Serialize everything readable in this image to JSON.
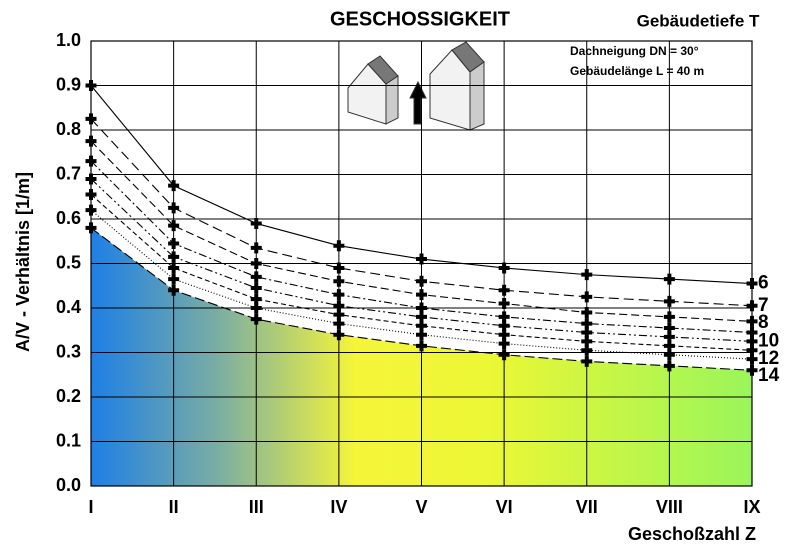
{
  "chart_data": {
    "type": "line",
    "title": "GESCHOSSIGKEIT",
    "legend_title": "Gebäudetiefe  T",
    "annotations": [
      "Dachneigung   DN = 30°",
      "Gebäudelänge L = 40 m"
    ],
    "y_label": "A/V - Verhältnis [1/m]",
    "x_label": "Geschoßzahl Z",
    "categories": [
      "I",
      "II",
      "III",
      "IV",
      "V",
      "VI",
      "VII",
      "VIII",
      "IX"
    ],
    "ylim": [
      0,
      1
    ],
    "yticks": [
      {
        "value": 0,
        "label": "0.0"
      },
      0.1,
      0.2,
      0.3,
      0.4,
      0.5,
      0.6,
      0.7,
      0.8,
      0.9,
      {
        "value": 1,
        "label": "1.0"
      }
    ],
    "grid": true,
    "series": [
      {
        "name": "6",
        "color": "#000000",
        "dash": "",
        "values": [
          0.9,
          0.675,
          0.59,
          0.54,
          0.51,
          0.49,
          0.475,
          0.465,
          0.455
        ]
      },
      {
        "name": "7",
        "color": "#000000",
        "dash": "10 5",
        "values": [
          0.825,
          0.625,
          0.535,
          0.49,
          0.46,
          0.44,
          0.425,
          0.415,
          0.405
        ]
      },
      {
        "name": "8",
        "color": "#000000",
        "dash": "8 4",
        "values": [
          0.775,
          0.585,
          0.5,
          0.46,
          0.43,
          0.41,
          0.39,
          0.38,
          0.37
        ]
      },
      {
        "name": null,
        "color": "#000000",
        "dash": "8 3 2 3",
        "values": [
          0.73,
          0.545,
          0.47,
          0.43,
          0.4,
          0.38,
          0.365,
          0.355,
          0.345
        ]
      },
      {
        "name": "10",
        "color": "#000000",
        "dash": "8 3 2 3 2 3",
        "values": [
          0.69,
          0.515,
          0.445,
          0.405,
          0.38,
          0.36,
          0.345,
          0.335,
          0.325
        ]
      },
      {
        "name": null,
        "color": "#000000",
        "dash": "5 3",
        "values": [
          0.655,
          0.49,
          0.42,
          0.385,
          0.36,
          0.34,
          0.325,
          0.315,
          0.305
        ]
      },
      {
        "name": "12",
        "color": "#000000",
        "dash": "1 2",
        "values": [
          0.62,
          0.465,
          0.4,
          0.365,
          0.34,
          0.32,
          0.305,
          0.295,
          0.285
        ]
      },
      {
        "name": "14",
        "color": "#000000",
        "dash": "10 4",
        "values": [
          0.58,
          0.44,
          0.375,
          0.34,
          0.315,
          0.295,
          0.28,
          0.27,
          0.26
        ]
      }
    ]
  }
}
